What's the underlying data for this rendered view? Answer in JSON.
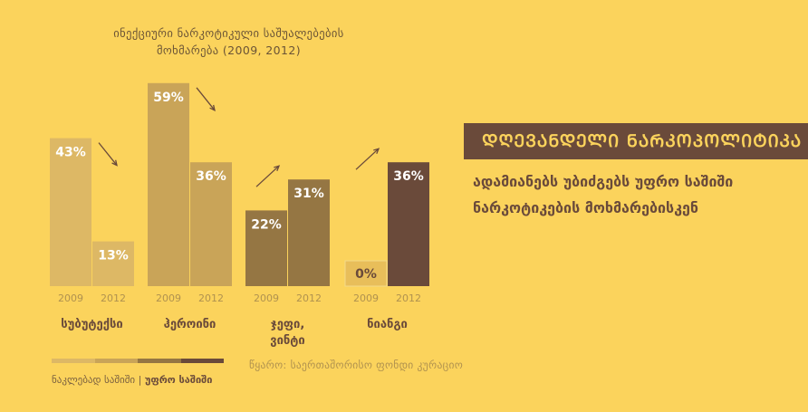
{
  "title": {
    "line1": "ინექციური ნარკოტიკული საშუალებების",
    "line2": "მოხმარება (2009, 2012)"
  },
  "headline": "ᲓᲦᲔᲕᲐᲜᲓᲔᲚᲘ ᲜᲐᲠᲙᲝᲞᲝᲚᲘᲢᲘᲙᲐ",
  "subtitle": {
    "line1": "ადამიანებს უბიძგებს უფრო საშიში",
    "line2": "ნარკოტიკების მოხმარებისკენ"
  },
  "source": "წყარო: საერთაშორისო ფონდი კურაციო",
  "legend": {
    "left_label": "ნაკლებად საშიში",
    "separator": " | ",
    "right_label": "უფრო საშიში",
    "colors": [
      "#DDB865",
      "#C9A458",
      "#957643",
      "#6A4A3A"
    ]
  },
  "colors": {
    "background": "#FBD35C",
    "label_text": "#6A4A3A",
    "year_text": "#b0924f",
    "arrow": "#6A4A3A",
    "zero_box": "#E8BE5A"
  },
  "chart_data": {
    "type": "bar",
    "title": "ინექციური ნარკოტიკული საშუალებების მოხმარება (2009, 2012)",
    "ylim": [
      0,
      60
    ],
    "series_years": [
      "2009",
      "2012"
    ],
    "groups": [
      {
        "category": "სუბუტექსი",
        "label_lines": [
          "სუბუტექსი"
        ],
        "values": [
          43,
          13
        ],
        "value_labels": [
          "43%",
          "13%"
        ],
        "color": "#DDB865",
        "trend": "down"
      },
      {
        "category": "ჰეროინი",
        "label_lines": [
          "ჰეროინი"
        ],
        "values": [
          59,
          36
        ],
        "value_labels": [
          "59%",
          "36%"
        ],
        "color": "#C9A458",
        "trend": "down"
      },
      {
        "category": "ჯეფი, ვინტი",
        "label_lines": [
          "ჯეფი,",
          "ვინტი"
        ],
        "values": [
          22,
          31
        ],
        "value_labels": [
          "22%",
          "31%"
        ],
        "color": "#957643",
        "trend": "up"
      },
      {
        "category": "ნიანგი",
        "label_lines": [
          "ნიანგი"
        ],
        "values": [
          0,
          36
        ],
        "value_labels": [
          "0%",
          "36%"
        ],
        "color": "#6A4A3A",
        "trend": "up"
      }
    ]
  }
}
